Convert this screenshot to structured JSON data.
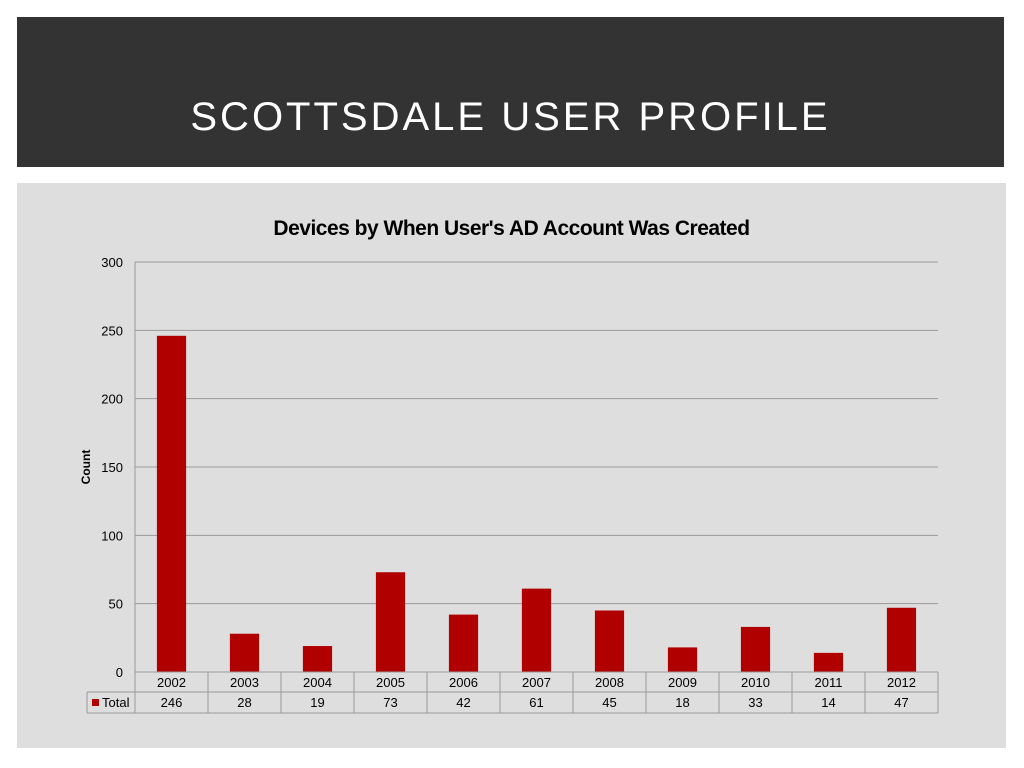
{
  "slide": {
    "title": "SCOTTSDALE USER PROFILE"
  },
  "chart_data": {
    "type": "bar",
    "title": "Devices by When User's AD Account Was Created",
    "xlabel": "",
    "ylabel": "Count",
    "categories": [
      "2002",
      "2003",
      "2004",
      "2005",
      "2006",
      "2007",
      "2008",
      "2009",
      "2010",
      "2011",
      "2012"
    ],
    "series": [
      {
        "name": "Total",
        "values": [
          246,
          28,
          19,
          73,
          42,
          61,
          45,
          18,
          33,
          14,
          47
        ],
        "color": "#b00000"
      }
    ],
    "ylim": [
      0,
      300
    ],
    "yticks": [
      0,
      50,
      100,
      150,
      200,
      250,
      300
    ],
    "grid": true,
    "legend": "data table",
    "colors": {
      "panel": "#dedede",
      "header": "#333333",
      "bar": "#b00000",
      "grid": "#9a9a9a"
    }
  }
}
